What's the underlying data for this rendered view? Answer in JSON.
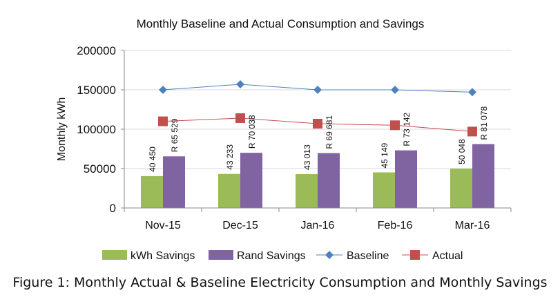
{
  "chart_data": {
    "type": "bar",
    "title": "Monthly Baseline and Actual Consumption and Savings",
    "ylabel": "Monthly kWh",
    "xlabel": "",
    "ylim": [
      0,
      200000
    ],
    "yticks": [
      "0",
      "50000",
      "100000",
      "150000",
      "200000"
    ],
    "categories": [
      "Nov-15",
      "Dec-15",
      "Jan-16",
      "Feb-16",
      "Mar-16"
    ],
    "legend_position": "bottom",
    "grid": true,
    "series": [
      {
        "name": "kWh Savings",
        "kind": "bar",
        "color": "#9BBB59",
        "values": [
          40450,
          43233,
          43013,
          45149,
          50048
        ],
        "labels": [
          "40 450",
          "43 233",
          "43 013",
          "45 149",
          "50 048"
        ]
      },
      {
        "name": "Rand Savings",
        "kind": "bar",
        "color": "#8064A2",
        "values": [
          65529,
          70038,
          69681,
          73142,
          81078
        ],
        "labels": [
          "R 65 529",
          "R 70 038",
          "R 69 681",
          "R 73 142",
          "R 81 078"
        ]
      },
      {
        "name": "Baseline",
        "kind": "line",
        "marker": "diamond",
        "color": "#4F81BD",
        "values": [
          150000,
          157000,
          150000,
          150000,
          147000
        ]
      },
      {
        "name": "Actual",
        "kind": "line",
        "marker": "square",
        "color": "#C0504D",
        "values": [
          110000,
          114000,
          107000,
          105000,
          97000
        ]
      }
    ]
  },
  "caption": "Figure 1: Monthly Actual & Baseline Electricity Consumption and Monthly Savings"
}
